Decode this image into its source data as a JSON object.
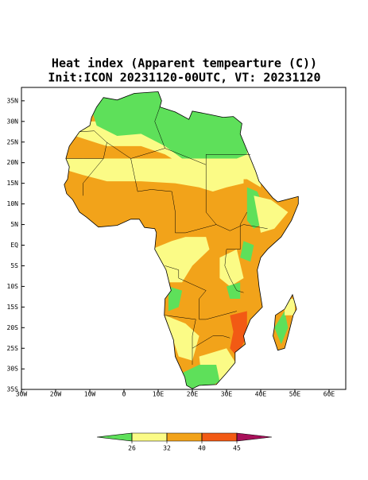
{
  "title": "Heat index (Apparent tempearture (C))",
  "subtitle": "Init:ICON 20231120-00UTC, VT: 20231120",
  "map": {
    "lon_ticks": [
      {
        "value": -30,
        "label": "30W"
      },
      {
        "value": -20,
        "label": "20W"
      },
      {
        "value": -10,
        "label": "10W"
      },
      0,
      {
        "value": 10,
        "label": "10E"
      },
      {
        "value": 20,
        "label": "20E"
      },
      {
        "value": 30,
        "label": "30E"
      },
      {
        "value": 40,
        "label": "40E"
      },
      {
        "value": 50,
        "label": "50E"
      },
      {
        "value": 60,
        "label": "60E"
      }
    ],
    "lat_ticks": [
      {
        "value": 35,
        "label": "35N"
      },
      {
        "value": 30,
        "label": "30N"
      },
      {
        "value": 25,
        "label": "25N"
      },
      {
        "value": 20,
        "label": "20N"
      },
      {
        "value": 15,
        "label": "15N"
      },
      {
        "value": 10,
        "label": "10N"
      },
      {
        "value": 5,
        "label": "5N"
      },
      {
        "value": 0,
        "label": "EQ"
      },
      {
        "value": -5,
        "label": "5S"
      },
      {
        "value": -10,
        "label": "10S"
      },
      {
        "value": -15,
        "label": "15S"
      },
      {
        "value": -20,
        "label": "20S"
      },
      {
        "value": -25,
        "label": "25S"
      },
      {
        "value": -30,
        "label": "30S"
      },
      {
        "value": -35,
        "label": "35S"
      }
    ]
  },
  "colorbar": {
    "levels": [
      26,
      32,
      40,
      45
    ],
    "colors": [
      "#5ee05a",
      "#fbfb86",
      "#f2a31a",
      "#f25a14",
      "#a8105a"
    ]
  }
}
